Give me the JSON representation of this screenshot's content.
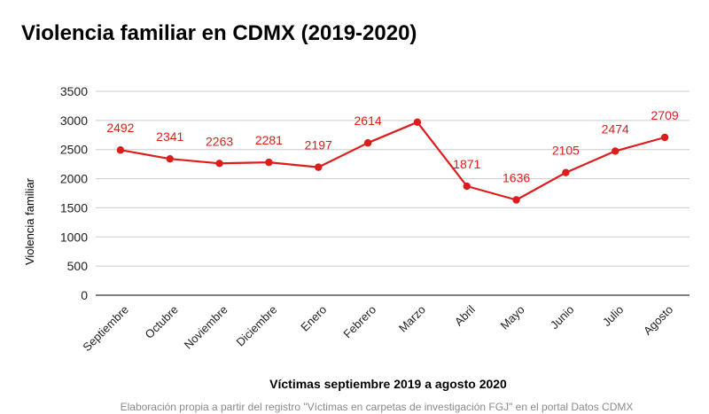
{
  "chart_data": {
    "type": "line",
    "title": "Violencia familiar en CDMX (2019-2020)",
    "xlabel": "Víctimas septiembre 2019 a agosto 2020",
    "ylabel": "Violencia familiar",
    "categories": [
      "Septiembre",
      "Octubre",
      "Noviembre",
      "Diciembre",
      "Enero",
      "Febrero",
      "Marzo",
      "Abril",
      "Mayo",
      "Junio",
      "Julio",
      "Agosto"
    ],
    "series": [
      {
        "values": [
          2492,
          2341,
          2263,
          2281,
          2197,
          2614,
          2970,
          1871,
          1636,
          2105,
          2474,
          2709
        ],
        "data_labels": [
          "2492",
          "2341",
          "2263",
          "2281",
          "2197",
          "2614",
          "",
          "1871",
          "1636",
          "2105",
          "2474",
          "2709"
        ]
      }
    ],
    "ylim": [
      0,
      3500
    ],
    "yticks": [
      0,
      500,
      1000,
      1500,
      2000,
      2500,
      3000,
      3500
    ],
    "grid": true,
    "legend": "none",
    "colors": {
      "line": "#dd1c1c",
      "label": "#dd1c1c",
      "grid": "#cccccc",
      "axis": "#333333"
    },
    "source": "Elaboración propia a partir del registro \"Víctimas en carpetas de investigación FGJ\" en el portal Datos CDMX"
  }
}
